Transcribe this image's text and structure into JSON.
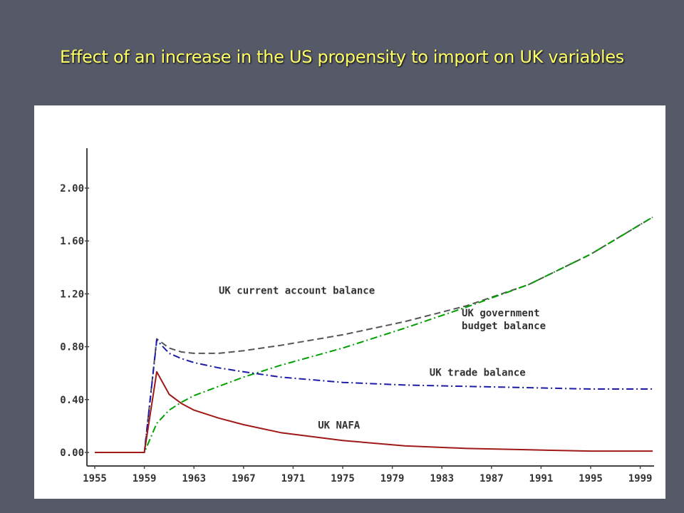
{
  "slide": {
    "title": "Effect of an increase in the US propensity to import on UK variables"
  },
  "chart_data": {
    "type": "line",
    "title": "Effect of an increase in the US propensity to import on UK variables",
    "xlabel": "",
    "ylabel": "",
    "xlim": [
      1955,
      2000
    ],
    "ylim": [
      0,
      2.2
    ],
    "x_ticks": [
      "1955",
      "1959",
      "1963",
      "1967",
      "1971",
      "1975",
      "1979",
      "1983",
      "1987",
      "1991",
      "1995",
      "1999"
    ],
    "y_ticks": [
      "0.00",
      "0.40",
      "0.80",
      "1.20",
      "1.60",
      "2.00"
    ],
    "grid": false,
    "series": [
      {
        "name": "UK current account balance",
        "color": "#555555",
        "dash": "dashed",
        "label_at": [
          1965,
          1.2
        ],
        "points": [
          [
            1955,
            0
          ],
          [
            1959,
            0
          ],
          [
            1960,
            0.86
          ],
          [
            1961,
            0.79
          ],
          [
            1962,
            0.76
          ],
          [
            1963,
            0.75
          ],
          [
            1965,
            0.75
          ],
          [
            1967,
            0.77
          ],
          [
            1970,
            0.81
          ],
          [
            1975,
            0.89
          ],
          [
            1980,
            0.99
          ],
          [
            1985,
            1.11
          ],
          [
            1990,
            1.27
          ],
          [
            1995,
            1.5
          ],
          [
            2000,
            1.78
          ]
        ]
      },
      {
        "name": "UK government budget balance",
        "label_lines": [
          "UK government",
          "budget balance"
        ],
        "color": "#00a000",
        "dash": "dashdot",
        "label_at": [
          1984.6,
          1.03
        ],
        "points": [
          [
            1955,
            0
          ],
          [
            1959,
            0
          ],
          [
            1960,
            0.22
          ],
          [
            1961,
            0.32
          ],
          [
            1962,
            0.38
          ],
          [
            1963,
            0.43
          ],
          [
            1965,
            0.5
          ],
          [
            1967,
            0.57
          ],
          [
            1970,
            0.66
          ],
          [
            1975,
            0.79
          ],
          [
            1980,
            0.94
          ],
          [
            1985,
            1.1
          ],
          [
            1990,
            1.27
          ],
          [
            1995,
            1.5
          ],
          [
            2000,
            1.78
          ]
        ]
      },
      {
        "name": "UK trade balance",
        "color": "#1c1ca8",
        "dash": "dashdot",
        "label_at": [
          1982,
          0.58
        ],
        "points": [
          [
            1955,
            0
          ],
          [
            1959,
            0
          ],
          [
            1960,
            0.85
          ],
          [
            1961,
            0.75
          ],
          [
            1962,
            0.71
          ],
          [
            1963,
            0.68
          ],
          [
            1965,
            0.64
          ],
          [
            1967,
            0.61
          ],
          [
            1970,
            0.57
          ],
          [
            1975,
            0.53
          ],
          [
            1980,
            0.51
          ],
          [
            1985,
            0.5
          ],
          [
            1990,
            0.49
          ],
          [
            1995,
            0.48
          ],
          [
            2000,
            0.48
          ]
        ]
      },
      {
        "name": "UK NAFA",
        "color": "#a01818",
        "dash": "solid",
        "label_at": [
          1973,
          0.18
        ],
        "points": [
          [
            1955,
            0
          ],
          [
            1959,
            0
          ],
          [
            1960,
            0.61
          ],
          [
            1961,
            0.44
          ],
          [
            1962,
            0.37
          ],
          [
            1963,
            0.32
          ],
          [
            1965,
            0.26
          ],
          [
            1967,
            0.21
          ],
          [
            1970,
            0.15
          ],
          [
            1975,
            0.09
          ],
          [
            1980,
            0.05
          ],
          [
            1985,
            0.03
          ],
          [
            1990,
            0.02
          ],
          [
            1995,
            0.01
          ],
          [
            2000,
            0.01
          ]
        ]
      }
    ]
  }
}
